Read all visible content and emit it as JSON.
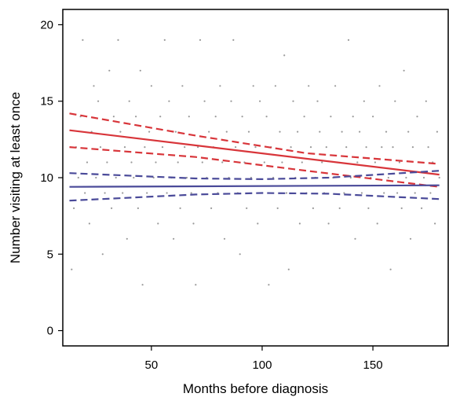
{
  "chart_data": {
    "type": "scatter",
    "xlabel": "Months before diagnosis",
    "ylabel": "Number visiting at least once",
    "xlim": [
      10,
      184
    ],
    "ylim": [
      -1,
      21
    ],
    "xticks": [
      50,
      100,
      150
    ],
    "yticks": [
      0,
      5,
      10,
      15,
      20
    ],
    "xtick_labels": [
      "50",
      "100",
      "150"
    ],
    "ytick_labels": [
      "0",
      "5",
      "10",
      "15",
      "20"
    ],
    "grid": false,
    "legend": "none",
    "colors": {
      "series_a": "#d8353a",
      "series_b": "#4a4a99",
      "points": "#9a9a9a",
      "axis": "#000000"
    },
    "series": [
      {
        "values": [
          [
            13,
            13.1
          ],
          [
            180,
            10.2
          ]
        ],
        "style": "solid",
        "color": "#d8353a"
      },
      {
        "values": [
          [
            13,
            14.2
          ],
          [
            70,
            12.75
          ],
          [
            120,
            11.6
          ],
          [
            180,
            10.9
          ]
        ],
        "style": "dashed",
        "color": "#d8353a"
      },
      {
        "values": [
          [
            13,
            12.0
          ],
          [
            70,
            11.35
          ],
          [
            120,
            10.45
          ],
          [
            180,
            9.4
          ]
        ],
        "style": "dashed",
        "color": "#d8353a"
      },
      {
        "values": [
          [
            13,
            9.4
          ],
          [
            180,
            9.5
          ]
        ],
        "style": "solid",
        "color": "#4a4a99"
      },
      {
        "values": [
          [
            13,
            10.3
          ],
          [
            70,
            9.95
          ],
          [
            100,
            9.9
          ],
          [
            130,
            10.0
          ],
          [
            180,
            10.45
          ]
        ],
        "style": "dashed",
        "color": "#4a4a99"
      },
      {
        "values": [
          [
            13,
            8.5
          ],
          [
            70,
            8.9
          ],
          [
            100,
            9.0
          ],
          [
            130,
            8.95
          ],
          [
            180,
            8.6
          ]
        ],
        "style": "dashed",
        "color": "#4a4a99"
      }
    ],
    "points": [
      [
        14,
        4
      ],
      [
        15,
        8
      ],
      [
        16,
        12
      ],
      [
        17,
        10
      ],
      [
        18,
        14
      ],
      [
        19,
        19
      ],
      [
        20,
        9
      ],
      [
        21,
        11
      ],
      [
        22,
        7
      ],
      [
        23,
        13
      ],
      [
        24,
        16
      ],
      [
        25,
        10
      ],
      [
        26,
        15
      ],
      [
        27,
        12
      ],
      [
        28,
        5
      ],
      [
        29,
        9
      ],
      [
        30,
        11
      ],
      [
        31,
        17
      ],
      [
        32,
        8
      ],
      [
        33,
        14
      ],
      [
        34,
        10
      ],
      [
        35,
        19
      ],
      [
        36,
        13
      ],
      [
        37,
        9
      ],
      [
        38,
        12
      ],
      [
        39,
        6
      ],
      [
        40,
        15
      ],
      [
        41,
        11
      ],
      [
        42,
        10
      ],
      [
        43,
        14
      ],
      [
        44,
        8
      ],
      [
        45,
        17
      ],
      [
        46,
        3
      ],
      [
        47,
        12
      ],
      [
        48,
        9
      ],
      [
        49,
        13
      ],
      [
        50,
        16
      ],
      [
        51,
        10
      ],
      [
        52,
        11
      ],
      [
        53,
        7
      ],
      [
        54,
        14
      ],
      [
        55,
        12
      ],
      [
        56,
        19
      ],
      [
        57,
        9
      ],
      [
        58,
        15
      ],
      [
        59,
        10
      ],
      [
        60,
        6
      ],
      [
        61,
        13
      ],
      [
        62,
        11
      ],
      [
        63,
        8
      ],
      [
        64,
        16
      ],
      [
        65,
        12
      ],
      [
        66,
        10
      ],
      [
        67,
        14
      ],
      [
        68,
        9
      ],
      [
        69,
        7
      ],
      [
        70,
        3
      ],
      [
        71,
        12
      ],
      [
        72,
        19
      ],
      [
        73,
        11
      ],
      [
        74,
        15
      ],
      [
        75,
        10
      ],
      [
        76,
        13
      ],
      [
        77,
        8
      ],
      [
        78,
        12
      ],
      [
        79,
        14
      ],
      [
        80,
        9
      ],
      [
        81,
        16
      ],
      [
        82,
        11
      ],
      [
        83,
        6
      ],
      [
        84,
        13
      ],
      [
        85,
        10
      ],
      [
        86,
        15
      ],
      [
        87,
        19
      ],
      [
        88,
        12
      ],
      [
        89,
        9
      ],
      [
        90,
        5
      ],
      [
        91,
        14
      ],
      [
        92,
        11
      ],
      [
        93,
        8
      ],
      [
        94,
        13
      ],
      [
        95,
        10
      ],
      [
        96,
        16
      ],
      [
        97,
        12
      ],
      [
        98,
        7
      ],
      [
        99,
        15
      ],
      [
        100,
        9
      ],
      [
        101,
        11
      ],
      [
        102,
        14
      ],
      [
        103,
        3
      ],
      [
        104,
        12
      ],
      [
        105,
        10
      ],
      [
        106,
        16
      ],
      [
        107,
        8
      ],
      [
        108,
        13
      ],
      [
        109,
        11
      ],
      [
        110,
        18
      ],
      [
        111,
        9
      ],
      [
        112,
        4
      ],
      [
        113,
        12
      ],
      [
        114,
        15
      ],
      [
        115,
        10
      ],
      [
        116,
        13
      ],
      [
        117,
        7
      ],
      [
        118,
        11
      ],
      [
        119,
        14
      ],
      [
        120,
        9
      ],
      [
        121,
        16
      ],
      [
        122,
        12
      ],
      [
        123,
        8
      ],
      [
        124,
        10
      ],
      [
        125,
        15
      ],
      [
        126,
        13
      ],
      [
        127,
        11
      ],
      [
        128,
        9
      ],
      [
        129,
        12
      ],
      [
        130,
        7
      ],
      [
        131,
        14
      ],
      [
        132,
        10
      ],
      [
        133,
        16
      ],
      [
        134,
        11
      ],
      [
        135,
        8
      ],
      [
        136,
        13
      ],
      [
        137,
        9
      ],
      [
        138,
        12
      ],
      [
        139,
        19
      ],
      [
        140,
        10
      ],
      [
        141,
        14
      ],
      [
        142,
        6
      ],
      [
        143,
        11
      ],
      [
        144,
        13
      ],
      [
        145,
        9
      ],
      [
        146,
        15
      ],
      [
        147,
        12
      ],
      [
        148,
        8
      ],
      [
        149,
        10
      ],
      [
        150,
        14
      ],
      [
        151,
        11
      ],
      [
        152,
        7
      ],
      [
        153,
        16
      ],
      [
        154,
        12
      ],
      [
        155,
        9
      ],
      [
        156,
        13
      ],
      [
        157,
        10
      ],
      [
        158,
        4
      ],
      [
        159,
        12
      ],
      [
        160,
        15
      ],
      [
        161,
        9
      ],
      [
        162,
        11
      ],
      [
        163,
        8
      ],
      [
        164,
        17
      ],
      [
        165,
        10
      ],
      [
        166,
        13
      ],
      [
        167,
        6
      ],
      [
        168,
        12
      ],
      [
        169,
        9
      ],
      [
        170,
        14
      ],
      [
        171,
        11
      ],
      [
        172,
        8
      ],
      [
        173,
        10
      ],
      [
        174,
        15
      ],
      [
        175,
        12
      ],
      [
        176,
        9
      ],
      [
        177,
        11
      ],
      [
        178,
        7
      ],
      [
        179,
        13
      ],
      [
        180,
        10
      ]
    ]
  }
}
